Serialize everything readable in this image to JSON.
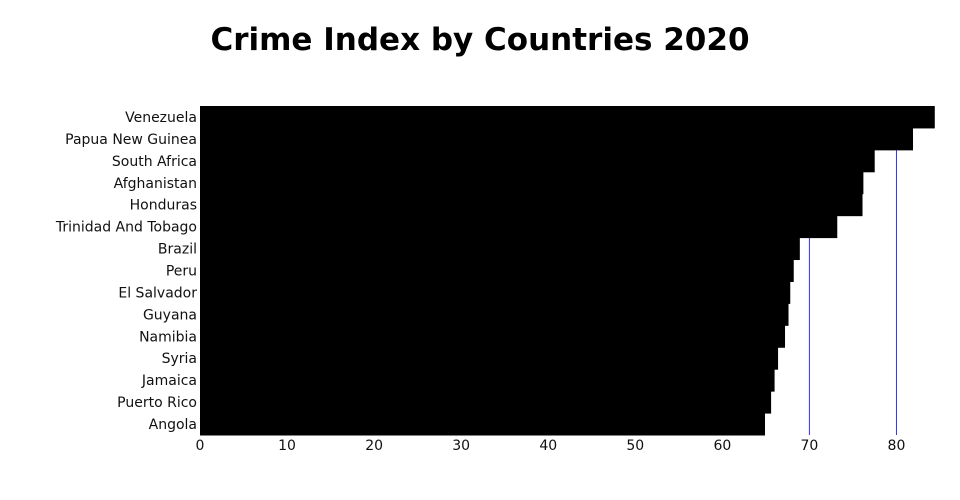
{
  "chart_data": {
    "type": "bar",
    "orientation": "horizontal",
    "title": "Crime Index by Countries 2020",
    "categories": [
      "Venezuela",
      "Papua New Guinea",
      "South Africa",
      "Afghanistan",
      "Honduras",
      "Trinidad And Tobago",
      "Brazil",
      "Peru",
      "El Salvador",
      "Guyana",
      "Namibia",
      "Syria",
      "Jamaica",
      "Puerto Rico",
      "Angola"
    ],
    "values": [
      84.4,
      81.9,
      77.5,
      76.2,
      76.1,
      73.2,
      68.9,
      68.2,
      67.8,
      67.6,
      67.2,
      66.4,
      66.0,
      65.6,
      64.9
    ],
    "xlim": [
      0,
      85
    ],
    "xticks": [
      0,
      10,
      20,
      30,
      40,
      50,
      60,
      70,
      80
    ],
    "grid": "vertical gridlines",
    "bar_color": "#000000",
    "grid_color": "#3333ee",
    "xlabel": "",
    "ylabel": ""
  }
}
